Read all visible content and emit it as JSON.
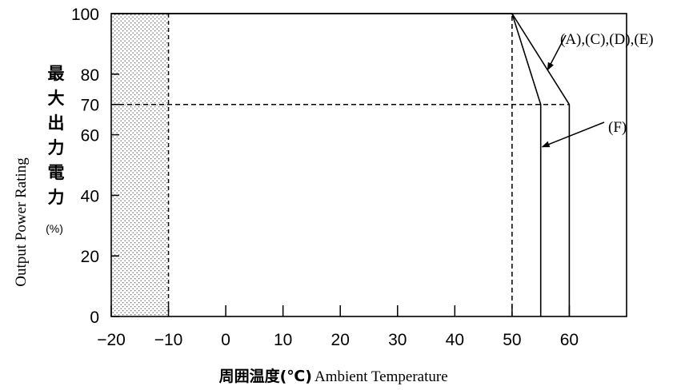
{
  "chart_data": {
    "type": "line",
    "xlabel_jp": "周囲温度(℃)",
    "xlabel_en": "Ambient Temperature",
    "ylabel_jp": [
      "最",
      "大",
      "出",
      "力",
      "電",
      "力"
    ],
    "ylabel_unit": "(%)",
    "ylabel_en": "Output Power Rating",
    "xlim": [
      -20,
      70
    ],
    "ylim": [
      0,
      100
    ],
    "x_ticks": [
      -20,
      -10,
      0,
      10,
      20,
      30,
      40,
      50,
      60
    ],
    "x_tick_labels": [
      "−20",
      "−10",
      "0",
      "10",
      "20",
      "30",
      "40",
      "50",
      "60"
    ],
    "y_ticks": [
      0,
      20,
      40,
      60,
      70,
      80,
      100
    ],
    "y_tick_labels": [
      "0",
      "20",
      "40",
      "60",
      "70",
      "80",
      "100"
    ],
    "shaded_region": {
      "x": [
        -20,
        -10
      ],
      "pattern": "dotted"
    },
    "reference_lines": [
      {
        "orientation": "horizontal",
        "y": 70,
        "x_range": [
          -20,
          60
        ],
        "style": "dashed"
      },
      {
        "orientation": "vertical",
        "x": 50,
        "y_range": [
          0,
          100
        ],
        "style": "dashed"
      }
    ],
    "series": [
      {
        "name": "(A),(C),(D),(E)",
        "x": [
          -20,
          50,
          60,
          60
        ],
        "y": [
          100,
          100,
          70,
          0
        ]
      },
      {
        "name": "(F)",
        "x": [
          -20,
          50,
          55,
          55
        ],
        "y": [
          100,
          100,
          70,
          0
        ]
      }
    ],
    "annotations": [
      {
        "text": "(A),(C),(D),(E)",
        "points_to_series": 0
      },
      {
        "text": "(F)",
        "points_to_series": 1
      }
    ],
    "grid": false
  }
}
